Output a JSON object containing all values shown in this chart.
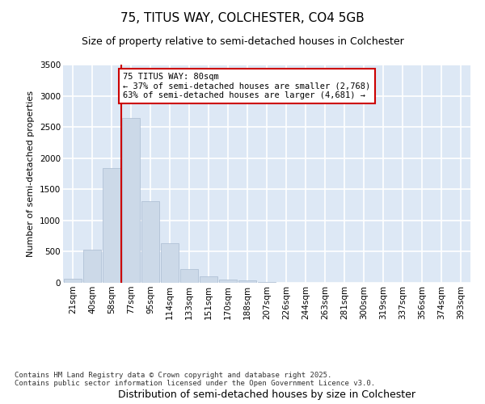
{
  "title": "75, TITUS WAY, COLCHESTER, CO4 5GB",
  "subtitle": "Size of property relative to semi-detached houses in Colchester",
  "xlabel": "Distribution of semi-detached houses by size in Colchester",
  "ylabel": "Number of semi-detached properties",
  "bar_color": "#ccd9e8",
  "bar_edge_color": "#aabbd0",
  "background_color": "#dde8f5",
  "grid_color": "#ffffff",
  "vline_color": "#cc0000",
  "vline_x_index": 3,
  "annotation_line1": "75 TITUS WAY: 80sqm",
  "annotation_line2": "← 37% of semi-detached houses are smaller (2,768)",
  "annotation_line3": "63% of semi-detached houses are larger (4,681) →",
  "footer_text": "Contains HM Land Registry data © Crown copyright and database right 2025.\nContains public sector information licensed under the Open Government Licence v3.0.",
  "categories": [
    "21sqm",
    "40sqm",
    "58sqm",
    "77sqm",
    "95sqm",
    "114sqm",
    "133sqm",
    "151sqm",
    "170sqm",
    "188sqm",
    "207sqm",
    "226sqm",
    "244sqm",
    "263sqm",
    "281sqm",
    "300sqm",
    "319sqm",
    "337sqm",
    "356sqm",
    "374sqm",
    "393sqm"
  ],
  "values": [
    70,
    530,
    1840,
    2650,
    1310,
    640,
    220,
    110,
    55,
    40,
    10,
    5,
    5,
    0,
    0,
    0,
    0,
    0,
    0,
    0,
    0
  ],
  "ylim": [
    0,
    3500
  ],
  "yticks": [
    0,
    500,
    1000,
    1500,
    2000,
    2500,
    3000,
    3500
  ],
  "title_fontsize": 11,
  "subtitle_fontsize": 9,
  "ylabel_fontsize": 8,
  "xlabel_fontsize": 9,
  "tick_fontsize": 7.5,
  "footer_fontsize": 6.5
}
